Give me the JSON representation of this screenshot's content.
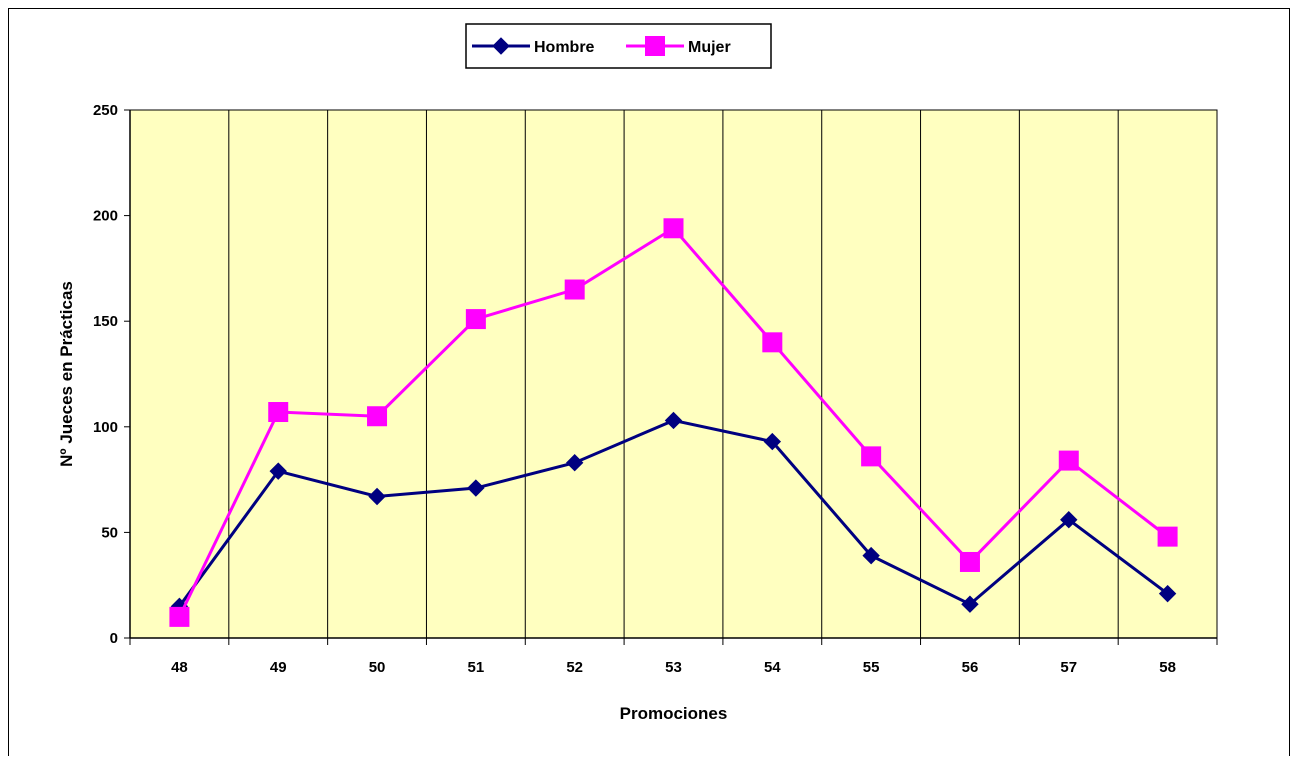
{
  "chart_data": {
    "type": "line",
    "title": "",
    "xlabel": "Promociones",
    "ylabel": "Nº Jueces en Prácticas",
    "categories": [
      "48",
      "49",
      "50",
      "51",
      "52",
      "53",
      "54",
      "55",
      "56",
      "57",
      "58"
    ],
    "ylim": [
      0,
      250
    ],
    "yticks": [
      "0",
      "50",
      "100",
      "150",
      "200",
      "250"
    ],
    "grid": "vertical",
    "legend_position": "top",
    "plot_background": "#FFFFC0",
    "series": [
      {
        "name": "Hombre",
        "color": "#000080",
        "marker": "diamond",
        "values": [
          15,
          79,
          67,
          71,
          83,
          103,
          93,
          39,
          16,
          56,
          21
        ]
      },
      {
        "name": "Mujer",
        "color": "#FF00FF",
        "marker": "square",
        "values": [
          10,
          107,
          105,
          151,
          165,
          194,
          140,
          86,
          36,
          84,
          48
        ]
      }
    ]
  }
}
